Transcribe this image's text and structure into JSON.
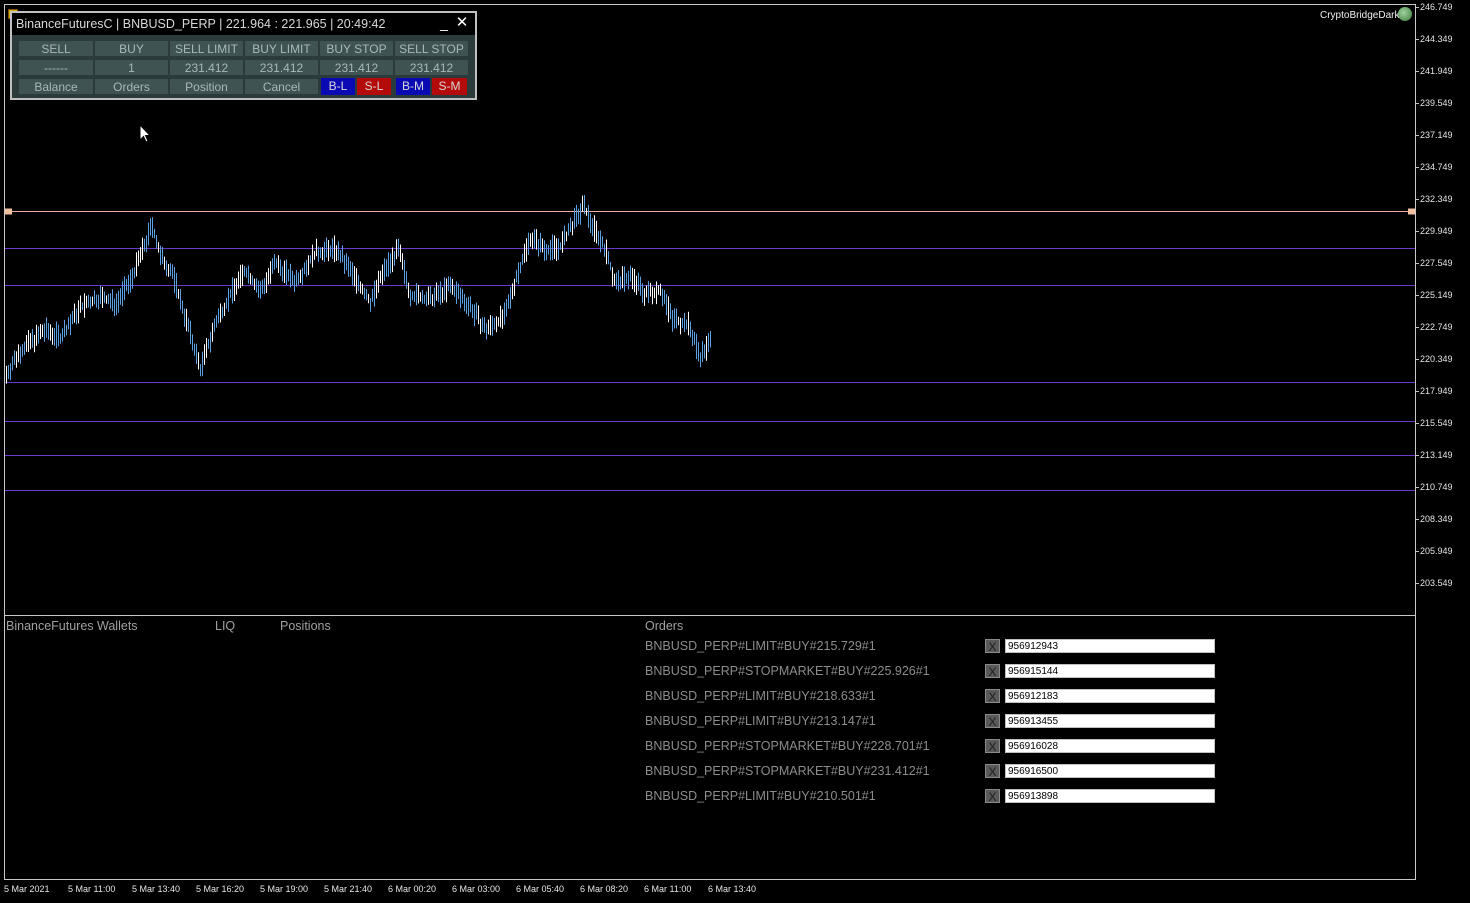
{
  "trade_panel": {
    "title": "BinanceFuturesC | BNBUSD_PERP | 221.964 : 221.965 | 20:49:42",
    "minimize_label": "_",
    "close_label": "✕",
    "row1": [
      "SELL",
      "BUY",
      "SELL LIMIT",
      "BUY LIMIT",
      "BUY STOP",
      "SELL STOP"
    ],
    "row2": [
      "------",
      "1",
      "231.412",
      "231.412",
      "231.412",
      "231.412"
    ],
    "row3": [
      "Balance",
      "Orders",
      "Position",
      "Cancel"
    ],
    "mini_buttons": [
      "B-L",
      "S-L",
      "B-M",
      "S-M"
    ]
  },
  "symbol_label": "CryptoBridgeDark",
  "price_axis": [
    "246.749",
    "244.349",
    "241.949",
    "239.549",
    "237.149",
    "234.749",
    "232.349",
    "229.949",
    "227.549",
    "225.149",
    "222.749",
    "220.349",
    "217.949",
    "215.549",
    "213.149",
    "210.749",
    "208.349",
    "205.949",
    "203.549"
  ],
  "time_axis": [
    "5 Mar 2021",
    "5 Mar 11:00",
    "5 Mar 13:40",
    "5 Mar 16:20",
    "5 Mar 19:00",
    "5 Mar 21:40",
    "6 Mar 00:20",
    "6 Mar 03:00",
    "6 Mar 05:40",
    "6 Mar 08:20",
    "6 Mar 11:00",
    "6 Mar 13:40"
  ],
  "horizontal_levels": [
    231.412,
    228.701,
    225.926,
    218.633,
    215.729,
    213.147,
    210.501
  ],
  "colors": {
    "candle": "#5aa0e0",
    "level_line": "#6a3ad0",
    "active_line": "#f0b0a0",
    "panel_bg": "#2b3b3b",
    "button_bg": "#3f5353"
  },
  "bottom_panel": {
    "wallets_title": "BinanceFutures Wallets",
    "liq_title": "LIQ",
    "positions_title": "Positions",
    "orders_title": "Orders",
    "close_label": "X",
    "orders": [
      {
        "label": "BNBUSD_PERP#LIMIT#BUY#215.729#1",
        "id": "956912943"
      },
      {
        "label": "BNBUSD_PERP#STOPMARKET#BUY#225.926#1",
        "id": "956915144"
      },
      {
        "label": "BNBUSD_PERP#LIMIT#BUY#218.633#1",
        "id": "956912183"
      },
      {
        "label": "BNBUSD_PERP#LIMIT#BUY#213.147#1",
        "id": "956913455"
      },
      {
        "label": "BNBUSD_PERP#STOPMARKET#BUY#228.701#1",
        "id": "956916028"
      },
      {
        "label": "BNBUSD_PERP#STOPMARKET#BUY#231.412#1",
        "id": "956916500"
      },
      {
        "label": "BNBUSD_PERP#LIMIT#BUY#210.501#1",
        "id": "956913898"
      }
    ]
  }
}
